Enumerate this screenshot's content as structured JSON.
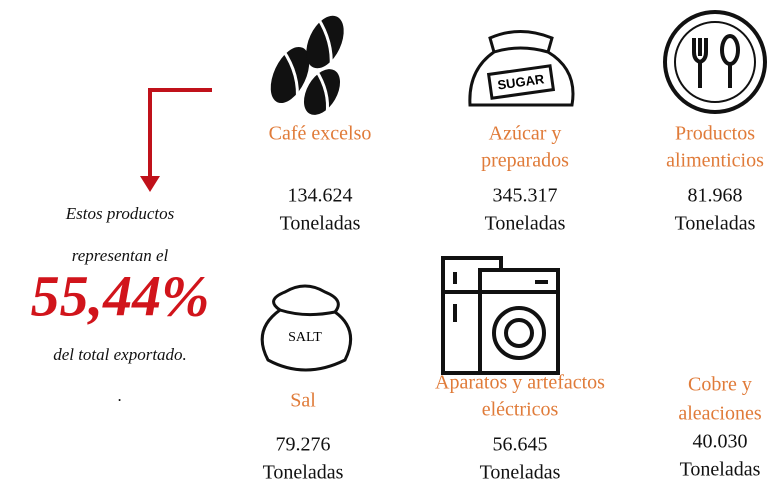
{
  "side": {
    "lines": [
      "Estos productos",
      "representan el"
    ],
    "percent": "55,44%",
    "after": [
      "del total exportado.",
      "."
    ]
  },
  "items": [
    {
      "label_lines": [
        "Café excelso"
      ],
      "value": "134.624",
      "unit": "Toneladas"
    },
    {
      "label_lines": [
        "Azúcar  y",
        "preparados"
      ],
      "value": "345.317",
      "unit": "Toneladas"
    },
    {
      "label_lines": [
        "Productos",
        "alimenticios"
      ],
      "value": "81.968",
      "unit": "Toneladas"
    },
    {
      "label_lines": [
        "Sal"
      ],
      "value": "79.276",
      "unit": "Toneladas"
    },
    {
      "label_lines": [
        "Aparatos y artefactos",
        "eléctricos"
      ],
      "value": "56.645",
      "unit": "Toneladas"
    },
    {
      "label_lines": [
        "Cobre y",
        "aleaciones"
      ],
      "value": "40.030",
      "unit": "Toneladas"
    }
  ],
  "icons": {
    "sugar": "SUGAR",
    "salt": "SALT"
  }
}
